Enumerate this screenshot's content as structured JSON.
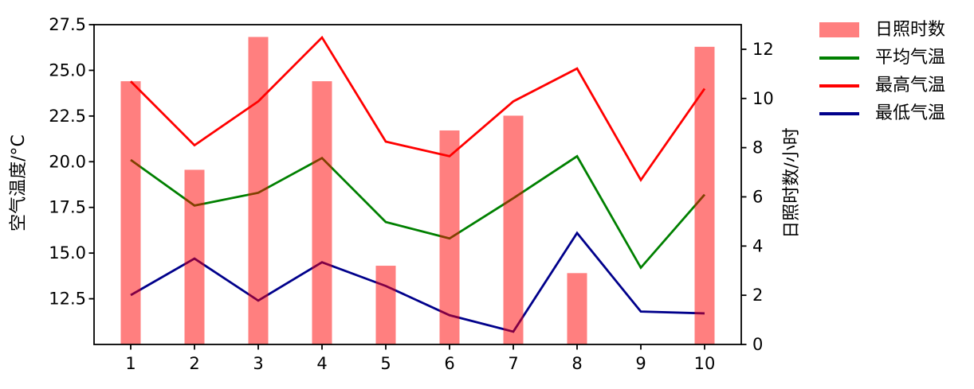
{
  "chart_data": {
    "type": "combo",
    "categories": [
      1,
      2,
      3,
      4,
      5,
      6,
      7,
      8,
      9,
      10
    ],
    "x_axis": {
      "tick_labels": [
        "1",
        "2",
        "3",
        "4",
        "5",
        "6",
        "7",
        "8",
        "9",
        "10"
      ],
      "range": [
        0.425,
        10.575
      ]
    },
    "y_axis_left": {
      "label": "空气温度/°C",
      "tick_values": [
        12.5,
        15.0,
        17.5,
        20.0,
        22.5,
        25.0,
        27.5
      ],
      "tick_labels": [
        "12.5",
        "15.0",
        "17.5",
        "20.0",
        "22.5",
        "25.0",
        "27.5"
      ],
      "range": [
        10,
        27.5
      ]
    },
    "y_axis_right": {
      "label": "日照时数/小时",
      "tick_values": [
        0,
        2,
        4,
        6,
        8,
        10,
        12
      ],
      "tick_labels": [
        "0",
        "2",
        "4",
        "6",
        "8",
        "10",
        "12"
      ],
      "range": [
        0,
        13
      ]
    },
    "series": [
      {
        "key": "sunshine-hours",
        "name": "日照时数",
        "type": "bar",
        "axis": "right",
        "color": "#FF0000",
        "fill_opacity": 0.5,
        "legend_swatch": "#FF7F7F",
        "values": [
          10.7,
          7.1,
          12.5,
          10.7,
          3.2,
          8.7,
          9.3,
          2.9,
          0,
          12.1
        ]
      },
      {
        "key": "avg-temp",
        "name": "平均气温",
        "type": "line",
        "axis": "left",
        "color": "#008000",
        "values": [
          20.1,
          17.6,
          18.3,
          20.2,
          16.7,
          15.8,
          18.0,
          20.3,
          14.2,
          18.2
        ]
      },
      {
        "key": "max-temp",
        "name": "最高气温",
        "type": "line",
        "axis": "left",
        "color": "#FF0000",
        "values": [
          24.4,
          20.9,
          23.3,
          26.8,
          21.1,
          20.3,
          23.3,
          25.1,
          19.0,
          24.0
        ]
      },
      {
        "key": "min-temp",
        "name": "最低气温",
        "type": "line",
        "axis": "left",
        "color": "#00008B",
        "values": [
          12.7,
          14.7,
          12.4,
          14.5,
          13.2,
          11.6,
          10.7,
          16.1,
          11.8,
          11.7
        ]
      }
    ],
    "grid": false,
    "legend_position": "right-outside",
    "text_color": "#000000",
    "frame_color": "#000000"
  }
}
